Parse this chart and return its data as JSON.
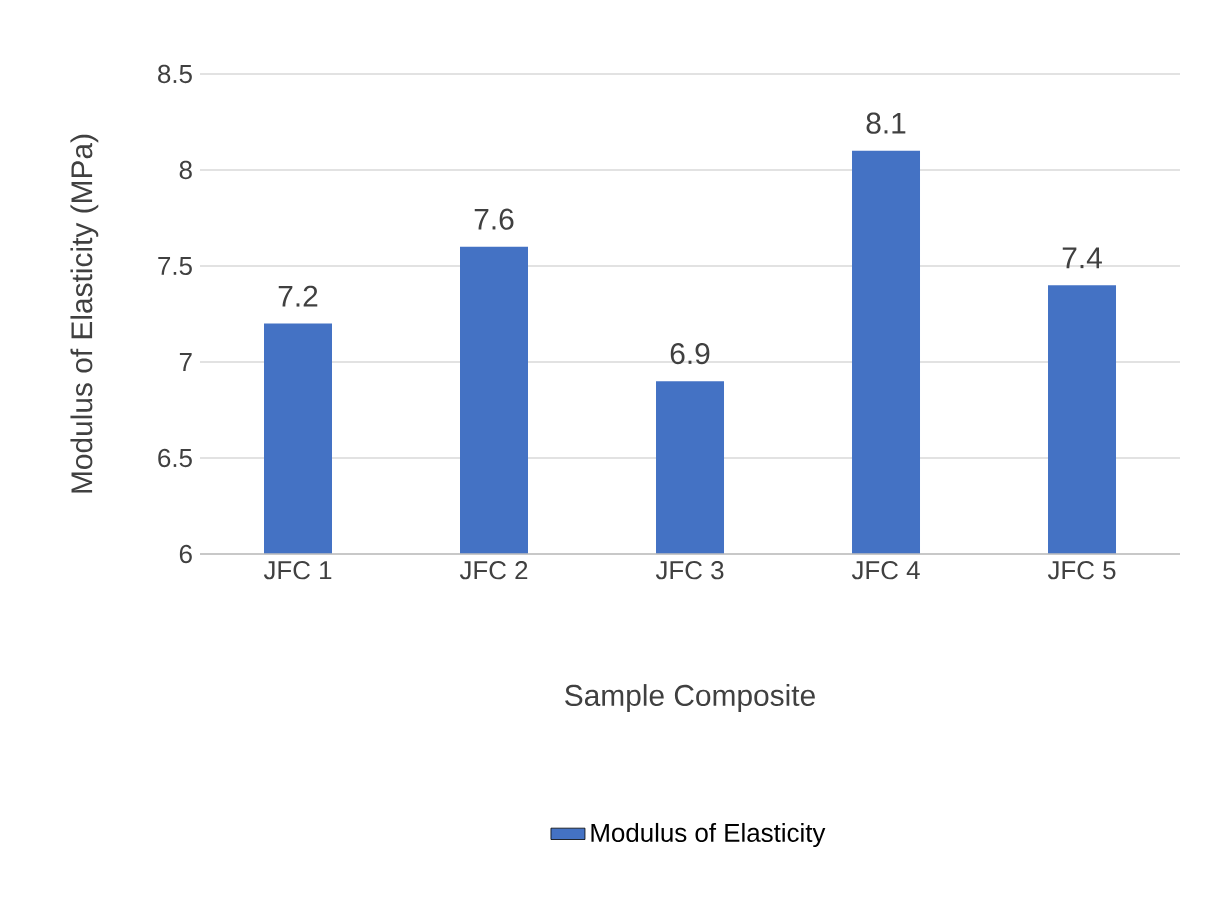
{
  "chart_data": {
    "type": "bar",
    "xlabel": "Sample Composite",
    "ylabel": "Modulus of Elasticity (MPa)",
    "categories": [
      "JFC 1",
      "JFC 2",
      "JFC 3",
      "JFC 4",
      "JFC 5"
    ],
    "series": [
      {
        "name": "Modulus of Elasticity",
        "color": "#4472c4",
        "values": [
          7.2,
          7.6,
          6.9,
          8.1,
          7.4
        ]
      }
    ],
    "ylim": [
      6,
      8.5
    ],
    "yticks": [
      6,
      6.5,
      7,
      7.5,
      8,
      8.5
    ],
    "grid": "y",
    "legend": "bottom",
    "data_labels": true
  }
}
